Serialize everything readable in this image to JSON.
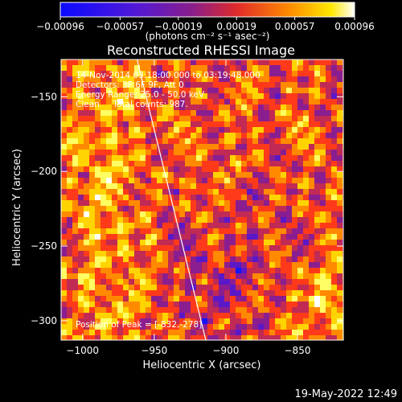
{
  "colors": {
    "background": "#000000",
    "text": "#ffffff",
    "colormap": [
      "#000000",
      "#1414ff",
      "#5a18c8",
      "#8a1e90",
      "#c02a54",
      "#ff3a1a",
      "#ff8a00",
      "#ffd400",
      "#ffff64",
      "#ffffff"
    ]
  },
  "chart_data": {
    "type": "heatmap",
    "title": "Reconstructed RHESSI Image",
    "xlabel": "Heliocentric X (arcsec)",
    "ylabel": "Heliocentric Y (arcsec)",
    "xlim": [
      -1015,
      -818
    ],
    "ylim": [
      -313,
      -125
    ],
    "x_ticks": [
      {
        "value": -1000,
        "label": "−1000"
      },
      {
        "value": -950,
        "label": "−950"
      },
      {
        "value": -900,
        "label": "−900"
      },
      {
        "value": -850,
        "label": "−850"
      }
    ],
    "y_ticks": [
      {
        "value": -150,
        "label": "−150"
      },
      {
        "value": -200,
        "label": "−200"
      },
      {
        "value": -250,
        "label": "−250"
      },
      {
        "value": -300,
        "label": "−300"
      }
    ],
    "colorbar": {
      "min": -0.00096,
      "max": 0.00096,
      "ticks": [
        {
          "value": -0.00096,
          "label": "−0.00096"
        },
        {
          "value": -0.00057,
          "label": "−0.00057"
        },
        {
          "value": -0.00019,
          "label": "−0.00019"
        },
        {
          "value": 0.00019,
          "label": "0.00019"
        },
        {
          "value": 0.00057,
          "label": "0.00057"
        },
        {
          "value": 0.00096,
          "label": "0.00096"
        }
      ],
      "units_label": "(photons cm⁻² s⁻¹ asec⁻²)"
    },
    "limb_line": [
      [
        -962,
        -125
      ],
      [
        -914,
        -313
      ]
    ],
    "peak": {
      "x": -832,
      "y": -278
    },
    "annotations": [
      "14‑Nov‑2014 03:18:00.000 to 03:19:48.000",
      "Detectors: 3F 6F 9F, Att 0",
      "Energy Range: 25.0 ‑ 50.0 keV",
      "Clean     Total counts: 987.",
      "Position of Peak = [‑832,‑278]"
    ]
  },
  "footer": {
    "date": "19‑May‑2022 12:49"
  }
}
